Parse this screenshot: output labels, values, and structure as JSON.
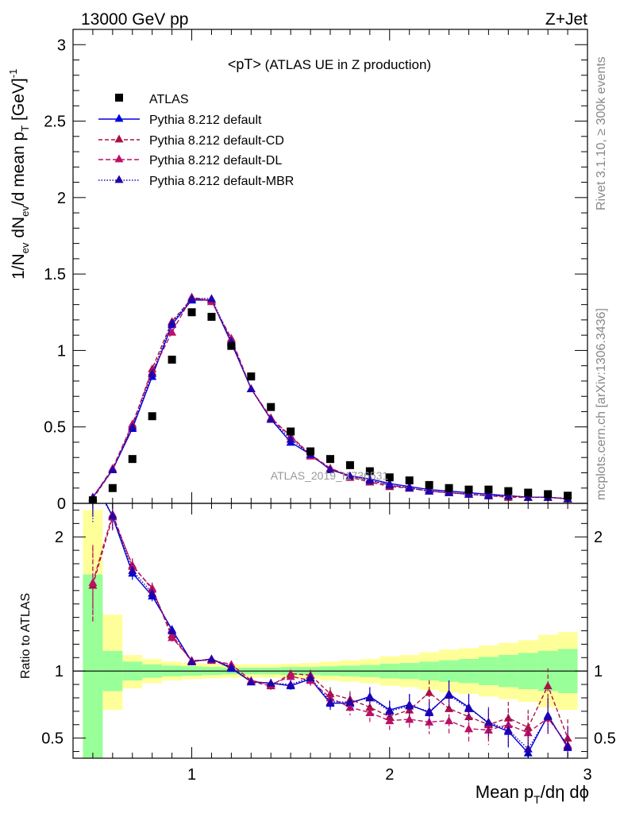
{
  "header": {
    "left": "13000 GeV pp",
    "right": "Z+Jet"
  },
  "side_labels": {
    "rivet": "Rivet 3.1.10, ≥ 300k events",
    "mcplots": "mcplots.cern.ch [arXiv:1306.3436]"
  },
  "watermark": "ATLAS_2019_I1736531",
  "colors": {
    "atlas": "#000000",
    "default": "#0000dd",
    "cd": "#aa1144",
    "dl": "#bb1166",
    "mbr": "#2200aa",
    "band_inner": "#99ff99",
    "band_outer": "#ffff99"
  },
  "chart_data": [
    {
      "type": "scatter",
      "title": "<pT>",
      "subtitle": "(ATLAS UE in Z production)",
      "ylabel": "1/N_ev dN_ev/d mean p_T [GeV]^-1",
      "xlim": [
        0.4,
        3.0
      ],
      "ylim": [
        0,
        3.1
      ],
      "yticks": [
        "0",
        "0.5",
        "1",
        "1.5",
        "2",
        "2.5",
        "3"
      ],
      "x": [
        0.5,
        0.6,
        0.7,
        0.8,
        0.9,
        1.0,
        1.1,
        1.2,
        1.3,
        1.4,
        1.5,
        1.6,
        1.7,
        1.8,
        1.9,
        2.0,
        2.1,
        2.2,
        2.3,
        2.4,
        2.5,
        2.6,
        2.7,
        2.8,
        2.9
      ],
      "series": [
        {
          "name": "ATLAS",
          "values": [
            0.02,
            0.1,
            0.29,
            0.57,
            0.94,
            1.25,
            1.22,
            1.03,
            0.83,
            0.63,
            0.47,
            0.34,
            0.29,
            0.25,
            0.21,
            0.17,
            0.15,
            0.12,
            0.1,
            0.09,
            0.09,
            0.08,
            0.07,
            0.06,
            0.05
          ]
        },
        {
          "name": "Pythia 8.212 default",
          "values": [
            0.04,
            0.22,
            0.49,
            0.83,
            1.17,
            1.33,
            1.33,
            1.05,
            0.75,
            0.55,
            0.4,
            0.32,
            0.22,
            0.18,
            0.16,
            0.13,
            0.11,
            0.09,
            0.08,
            0.07,
            0.06,
            0.05,
            0.04,
            0.04,
            0.03
          ]
        },
        {
          "name": "Pythia 8.212 default-CD",
          "values": [
            0.03,
            0.22,
            0.51,
            0.88,
            1.19,
            1.34,
            1.33,
            1.06,
            0.75,
            0.55,
            0.44,
            0.32,
            0.23,
            0.17,
            0.14,
            0.11,
            0.1,
            0.08,
            0.07,
            0.06,
            0.05,
            0.04,
            0.04,
            0.04,
            0.03
          ]
        },
        {
          "name": "Pythia 8.212 default-DL",
          "values": [
            0.04,
            0.23,
            0.52,
            0.86,
            1.12,
            1.35,
            1.32,
            1.08,
            0.75,
            0.56,
            0.44,
            0.31,
            0.23,
            0.18,
            0.15,
            0.12,
            0.1,
            0.08,
            0.07,
            0.06,
            0.05,
            0.05,
            0.04,
            0.04,
            0.03
          ]
        },
        {
          "name": "Pythia 8.212 default-MBR",
          "values": [
            0.04,
            0.22,
            0.5,
            0.85,
            1.18,
            1.34,
            1.34,
            1.06,
            0.75,
            0.55,
            0.42,
            0.32,
            0.22,
            0.18,
            0.15,
            0.12,
            0.1,
            0.08,
            0.07,
            0.06,
            0.05,
            0.05,
            0.04,
            0.04,
            0.03
          ]
        }
      ]
    },
    {
      "type": "line",
      "ylabel": "Ratio to ATLAS",
      "xlabel": "Mean p_T/dη dϕ",
      "xlim": [
        0.4,
        3.0
      ],
      "ylim": [
        0.35,
        2.25
      ],
      "xticks": [
        "1",
        "2",
        "3"
      ],
      "yticks": [
        "0.5",
        "1",
        "2"
      ],
      "x": [
        0.5,
        0.6,
        0.7,
        0.8,
        0.9,
        1.0,
        1.1,
        1.2,
        1.3,
        1.4,
        1.5,
        1.6,
        1.7,
        1.8,
        1.9,
        2.0,
        2.1,
        2.2,
        2.3,
        2.4,
        2.5,
        2.6,
        2.7,
        2.8,
        2.9
      ],
      "band_edges": [
        0.45,
        0.55,
        0.65,
        0.75,
        0.85,
        0.95,
        1.05,
        1.15,
        1.25,
        1.35,
        1.45,
        1.55,
        1.65,
        1.75,
        1.85,
        1.95,
        2.05,
        2.15,
        2.25,
        2.35,
        2.45,
        2.55,
        2.65,
        2.75,
        2.85,
        2.95
      ],
      "band_inner": {
        "low": [
          0.35,
          0.85,
          0.93,
          0.95,
          0.96,
          0.965,
          0.97,
          0.975,
          0.975,
          0.975,
          0.97,
          0.97,
          0.965,
          0.96,
          0.955,
          0.945,
          0.94,
          0.93,
          0.92,
          0.91,
          0.895,
          0.88,
          0.865,
          0.85,
          0.835
        ],
        "high": [
          1.72,
          1.15,
          1.07,
          1.05,
          1.04,
          1.035,
          1.03,
          1.025,
          1.025,
          1.025,
          1.03,
          1.03,
          1.035,
          1.04,
          1.045,
          1.055,
          1.06,
          1.07,
          1.08,
          1.09,
          1.105,
          1.12,
          1.135,
          1.15,
          1.165
        ]
      },
      "band_outer": {
        "low": [
          0.35,
          0.71,
          0.87,
          0.91,
          0.93,
          0.94,
          0.945,
          0.95,
          0.95,
          0.95,
          0.945,
          0.94,
          0.93,
          0.92,
          0.91,
          0.89,
          0.88,
          0.86,
          0.84,
          0.83,
          0.81,
          0.79,
          0.77,
          0.73,
          0.71
        ],
        "high": [
          2.2,
          1.42,
          1.12,
          1.09,
          1.07,
          1.06,
          1.055,
          1.05,
          1.05,
          1.05,
          1.055,
          1.06,
          1.07,
          1.08,
          1.09,
          1.11,
          1.12,
          1.14,
          1.16,
          1.17,
          1.19,
          1.21,
          1.23,
          1.27,
          1.29
        ]
      },
      "series": [
        {
          "name": "Pythia 8.212 default",
          "values": [
            2.45,
            2.15,
            1.73,
            1.56,
            1.31,
            1.07,
            1.09,
            1.02,
            0.92,
            0.91,
            0.89,
            0.94,
            0.76,
            0.76,
            0.81,
            0.71,
            0.75,
            0.69,
            0.83,
            0.73,
            0.61,
            0.55,
            0.39,
            0.67,
            0.43
          ],
          "err": [
            0.3,
            0.1,
            0.05,
            0.04,
            0.03,
            0.02,
            0.02,
            0.02,
            0.02,
            0.03,
            0.03,
            0.04,
            0.05,
            0.06,
            0.07,
            0.07,
            0.08,
            0.09,
            0.1,
            0.1,
            0.11,
            0.12,
            0.13,
            0.13,
            0.14
          ]
        },
        {
          "name": "Pythia 8.212 default-CD",
          "values": [
            1.64,
            2.15,
            1.79,
            1.61,
            1.27,
            1.07,
            1.09,
            1.03,
            0.92,
            0.89,
            0.98,
            0.97,
            0.83,
            0.79,
            0.73,
            0.66,
            0.71,
            0.84,
            0.72,
            0.66,
            0.6,
            0.65,
            0.58,
            0.89,
            0.5
          ],
          "err": [
            0.28,
            0.1,
            0.05,
            0.04,
            0.03,
            0.02,
            0.02,
            0.02,
            0.02,
            0.03,
            0.03,
            0.04,
            0.05,
            0.06,
            0.07,
            0.07,
            0.08,
            0.09,
            0.1,
            0.1,
            0.11,
            0.12,
            0.13,
            0.13,
            0.14
          ]
        },
        {
          "name": "Pythia 8.212 default-DL",
          "values": [
            1.66,
            2.17,
            1.78,
            1.62,
            1.25,
            1.08,
            1.08,
            1.05,
            0.93,
            0.9,
            0.96,
            0.93,
            0.8,
            0.73,
            0.69,
            0.63,
            0.64,
            0.62,
            0.63,
            0.57,
            0.56,
            0.6,
            0.54,
            0.65,
            0.45
          ],
          "err": [
            0.28,
            0.1,
            0.05,
            0.04,
            0.03,
            0.02,
            0.02,
            0.02,
            0.02,
            0.03,
            0.03,
            0.04,
            0.05,
            0.06,
            0.07,
            0.07,
            0.08,
            0.09,
            0.1,
            0.1,
            0.11,
            0.12,
            0.13,
            0.13,
            0.14
          ]
        },
        {
          "name": "Pythia 8.212 default-MBR",
          "values": [
            2.4,
            2.16,
            1.75,
            1.58,
            1.3,
            1.07,
            1.09,
            1.03,
            0.92,
            0.91,
            0.9,
            0.95,
            0.77,
            0.77,
            0.8,
            0.7,
            0.74,
            0.7,
            0.82,
            0.72,
            0.62,
            0.56,
            0.42,
            0.66,
            0.44
          ],
          "err": [
            0.3,
            0.1,
            0.05,
            0.04,
            0.03,
            0.02,
            0.02,
            0.02,
            0.02,
            0.03,
            0.03,
            0.04,
            0.05,
            0.06,
            0.07,
            0.07,
            0.08,
            0.09,
            0.1,
            0.1,
            0.11,
            0.12,
            0.13,
            0.13,
            0.14
          ]
        }
      ]
    }
  ]
}
